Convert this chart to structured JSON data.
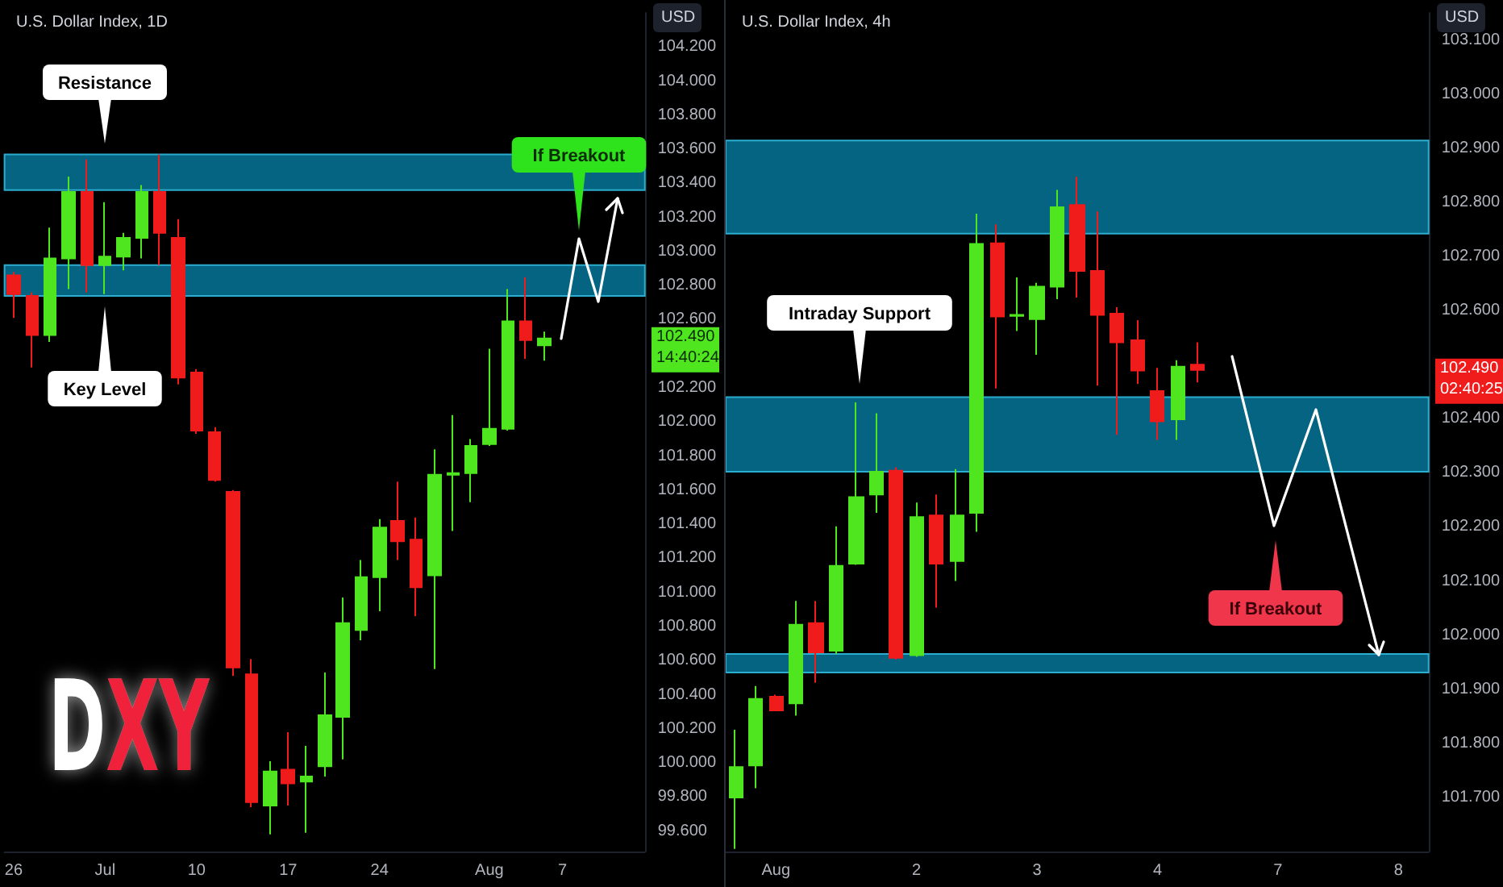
{
  "chart_data": [
    {
      "type": "candlestick",
      "title": "U.S. Dollar Index, 1D",
      "categories": [
        "26",
        null,
        null,
        null,
        null,
        "Jul",
        null,
        null,
        null,
        null,
        "10",
        null,
        null,
        null,
        null,
        "17",
        null,
        null,
        null,
        null,
        "24",
        null,
        null,
        null,
        null,
        null,
        "Aug",
        null,
        null,
        null,
        "7",
        null,
        null,
        null,
        null
      ],
      "ohlc": [
        [
          102.86,
          102.88,
          102.61,
          102.75
        ],
        [
          102.74,
          102.76,
          102.32,
          102.51
        ],
        [
          102.51,
          103.14,
          102.47,
          102.96
        ],
        [
          102.96,
          103.44,
          102.78,
          103.35
        ],
        [
          103.35,
          103.54,
          102.76,
          102.92
        ],
        [
          102.92,
          103.29,
          102.75,
          102.97
        ],
        [
          102.97,
          103.11,
          102.89,
          103.08
        ],
        [
          103.08,
          103.39,
          102.96,
          103.35
        ],
        [
          103.35,
          103.57,
          102.92,
          103.11
        ],
        [
          103.08,
          103.19,
          102.22,
          102.26
        ],
        [
          102.29,
          102.31,
          101.93,
          101.95
        ],
        [
          101.94,
          101.97,
          101.65,
          101.66
        ],
        [
          101.59,
          101.6,
          100.51,
          100.56
        ],
        [
          100.52,
          100.61,
          99.74,
          99.77
        ],
        [
          99.75,
          100.01,
          99.58,
          99.95
        ],
        [
          99.96,
          100.18,
          99.75,
          99.88
        ],
        [
          99.89,
          100.1,
          99.59,
          99.92
        ],
        [
          99.98,
          100.53,
          99.92,
          100.28
        ],
        [
          100.27,
          100.97,
          100.02,
          100.82
        ],
        [
          100.78,
          101.19,
          100.72,
          101.09
        ],
        [
          101.09,
          101.43,
          100.89,
          101.38
        ],
        [
          101.42,
          101.65,
          101.19,
          101.3
        ],
        [
          101.31,
          101.44,
          100.86,
          101.03
        ],
        [
          101.1,
          101.84,
          100.55,
          101.69
        ],
        [
          101.69,
          102.04,
          101.36,
          101.7
        ],
        [
          101.7,
          101.9,
          101.53,
          101.86
        ],
        [
          101.87,
          102.43,
          101.86,
          101.96
        ],
        [
          101.96,
          102.78,
          101.95,
          102.59
        ],
        [
          102.59,
          102.85,
          102.37,
          102.48
        ],
        [
          102.45,
          102.53,
          102.36,
          102.49
        ],
        null,
        null,
        null,
        null,
        null
      ],
      "colors": [
        "#f01b1b",
        "#f01b1b",
        "#4fe51f",
        "#4fe51f",
        "#f01b1b",
        "#4fe51f",
        "#4fe51f",
        "#4fe51f",
        "#f01b1b",
        "#f01b1b",
        "#f01b1b",
        "#f01b1b",
        "#f01b1b",
        "#f01b1b",
        "#4fe51f",
        "#f01b1b",
        "#4fe51f",
        "#4fe51f",
        "#4fe51f",
        "#4fe51f",
        "#4fe51f",
        "#f01b1b",
        "#f01b1b",
        "#4fe51f",
        "#4fe51f",
        "#4fe51f",
        "#4fe51f",
        "#4fe51f",
        "#f01b1b",
        "#4fe51f",
        null,
        null,
        null,
        null,
        null
      ],
      "ylim": [
        99.48,
        104.4
      ],
      "yticks": [
        {
          "value": 99.6,
          "label": "99.600"
        },
        {
          "value": 99.8,
          "label": "99.800"
        },
        {
          "value": 100,
          "label": "100.000"
        },
        {
          "value": 100.2,
          "label": "100.200"
        },
        {
          "value": 100.4,
          "label": "100.400"
        },
        {
          "value": 100.6,
          "label": "100.600"
        },
        {
          "value": 100.8,
          "label": "100.800"
        },
        {
          "value": 101,
          "label": "101.000"
        },
        {
          "value": 101.2,
          "label": "101.200"
        },
        {
          "value": 101.4,
          "label": "101.400"
        },
        {
          "value": 101.6,
          "label": "101.600"
        },
        {
          "value": 101.8,
          "label": "101.800"
        },
        {
          "value": 102,
          "label": "102.000"
        },
        {
          "value": 102.2,
          "label": "102.200"
        },
        {
          "value": 102.6,
          "label": "102.600"
        },
        {
          "value": 102.8,
          "label": "102.800"
        },
        {
          "value": 103,
          "label": "103.000"
        },
        {
          "value": 103.2,
          "label": "103.200"
        },
        {
          "value": 103.4,
          "label": "103.400"
        },
        {
          "value": 103.6,
          "label": "103.600"
        },
        {
          "value": 103.8,
          "label": "103.800"
        },
        {
          "value": 104,
          "label": "104.000"
        },
        {
          "value": 104.2,
          "label": "104.200"
        }
      ],
      "bands": [
        {
          "axis": "y",
          "from": 103.36,
          "to": 103.57,
          "color": "#06698a"
        },
        {
          "axis": "y",
          "from": 102.74,
          "to": 102.92,
          "color": "#06698a"
        }
      ],
      "annotations": [
        "Resistance",
        "Key Level",
        "If Breakout",
        "DXY",
        "102.490\n14:40:24",
        "USD"
      ]
    },
    {
      "type": "candlestick",
      "title": "U.S. Dollar Index, 4h",
      "categories": [
        null,
        null,
        "Aug",
        null,
        null,
        null,
        null,
        null,
        null,
        "2",
        null,
        null,
        null,
        null,
        null,
        "3",
        null,
        null,
        null,
        null,
        null,
        "4",
        null,
        null,
        null,
        null,
        null,
        "7",
        null,
        null,
        null,
        null,
        null,
        "8",
        null
      ],
      "ohlc": [
        [
          101.7,
          101.825,
          101.605,
          101.756
        ],
        [
          101.759,
          101.906,
          101.717,
          101.882
        ],
        [
          101.886,
          101.89,
          101.86,
          101.861
        ],
        [
          101.874,
          102.063,
          101.851,
          102.019
        ],
        [
          102.022,
          102.063,
          101.912,
          101.968
        ],
        [
          101.971,
          102.201,
          101.965,
          102.128
        ],
        [
          102.132,
          102.43,
          102.13,
          102.255
        ],
        [
          102.26,
          102.41,
          102.226,
          102.302
        ],
        [
          102.304,
          102.31,
          101.955,
          101.958
        ],
        [
          101.963,
          102.245,
          101.96,
          102.218
        ],
        [
          102.221,
          102.26,
          102.051,
          102.132
        ],
        [
          102.137,
          102.307,
          102.1,
          102.221
        ],
        [
          102.226,
          102.779,
          102.191,
          102.723
        ],
        [
          102.724,
          102.759,
          102.456,
          102.589
        ],
        [
          102.59,
          102.661,
          102.562,
          102.592
        ],
        [
          102.584,
          102.651,
          102.518,
          102.644
        ],
        [
          102.644,
          102.823,
          102.621,
          102.791
        ],
        [
          102.795,
          102.847,
          102.624,
          102.673
        ],
        [
          102.673,
          102.783,
          102.461,
          102.592
        ],
        [
          102.594,
          102.606,
          102.37,
          102.541
        ],
        [
          102.545,
          102.582,
          102.464,
          102.489
        ],
        [
          102.451,
          102.494,
          102.361,
          102.395
        ],
        [
          102.399,
          102.508,
          102.361,
          102.496
        ],
        [
          102.5,
          102.541,
          102.467,
          102.49
        ],
        null,
        null,
        null,
        null,
        null,
        null,
        null,
        null,
        null,
        null,
        null
      ],
      "colors": [
        "#4fe51f",
        "#4fe51f",
        "#f01b1b",
        "#4fe51f",
        "#f01b1b",
        "#4fe51f",
        "#4fe51f",
        "#4fe51f",
        "#f01b1b",
        "#4fe51f",
        "#f01b1b",
        "#4fe51f",
        "#4fe51f",
        "#f01b1b",
        "#4fe51f",
        "#4fe51f",
        "#4fe51f",
        "#f01b1b",
        "#f01b1b",
        "#f01b1b",
        "#f01b1b",
        "#f01b1b",
        "#4fe51f",
        "#f01b1b",
        null,
        null,
        null,
        null,
        null,
        null,
        null,
        null,
        null,
        null,
        null
      ],
      "ylim": [
        101.6,
        103.15
      ],
      "yticks": [
        {
          "value": 101.7,
          "label": "101.700"
        },
        {
          "value": 101.8,
          "label": "101.800"
        },
        {
          "value": 101.9,
          "label": "101.900"
        },
        {
          "value": 102,
          "label": "102.000"
        },
        {
          "value": 102.1,
          "label": "102.100"
        },
        {
          "value": 102.2,
          "label": "102.200"
        },
        {
          "value": 102.3,
          "label": "102.300"
        },
        {
          "value": 102.4,
          "label": "102.400"
        },
        {
          "value": 102.6,
          "label": "102.600"
        },
        {
          "value": 102.7,
          "label": "102.700"
        },
        {
          "value": 102.8,
          "label": "102.800"
        },
        {
          "value": 102.9,
          "label": "102.900"
        },
        {
          "value": 103,
          "label": "103.000"
        },
        {
          "value": 103.1,
          "label": "103.100"
        }
      ],
      "bands": [
        {
          "axis": "y",
          "from": 102.742,
          "to": 102.914,
          "color": "#06698a"
        },
        {
          "axis": "y",
          "from": 102.302,
          "to": 102.44,
          "color": "#06698a"
        },
        {
          "axis": "y",
          "from": 101.931,
          "to": 101.965,
          "color": "#06698a"
        }
      ],
      "annotations": [
        "Intraday Support",
        "If Breakout",
        "102.490\n02:40:25",
        "USD"
      ]
    }
  ]
}
